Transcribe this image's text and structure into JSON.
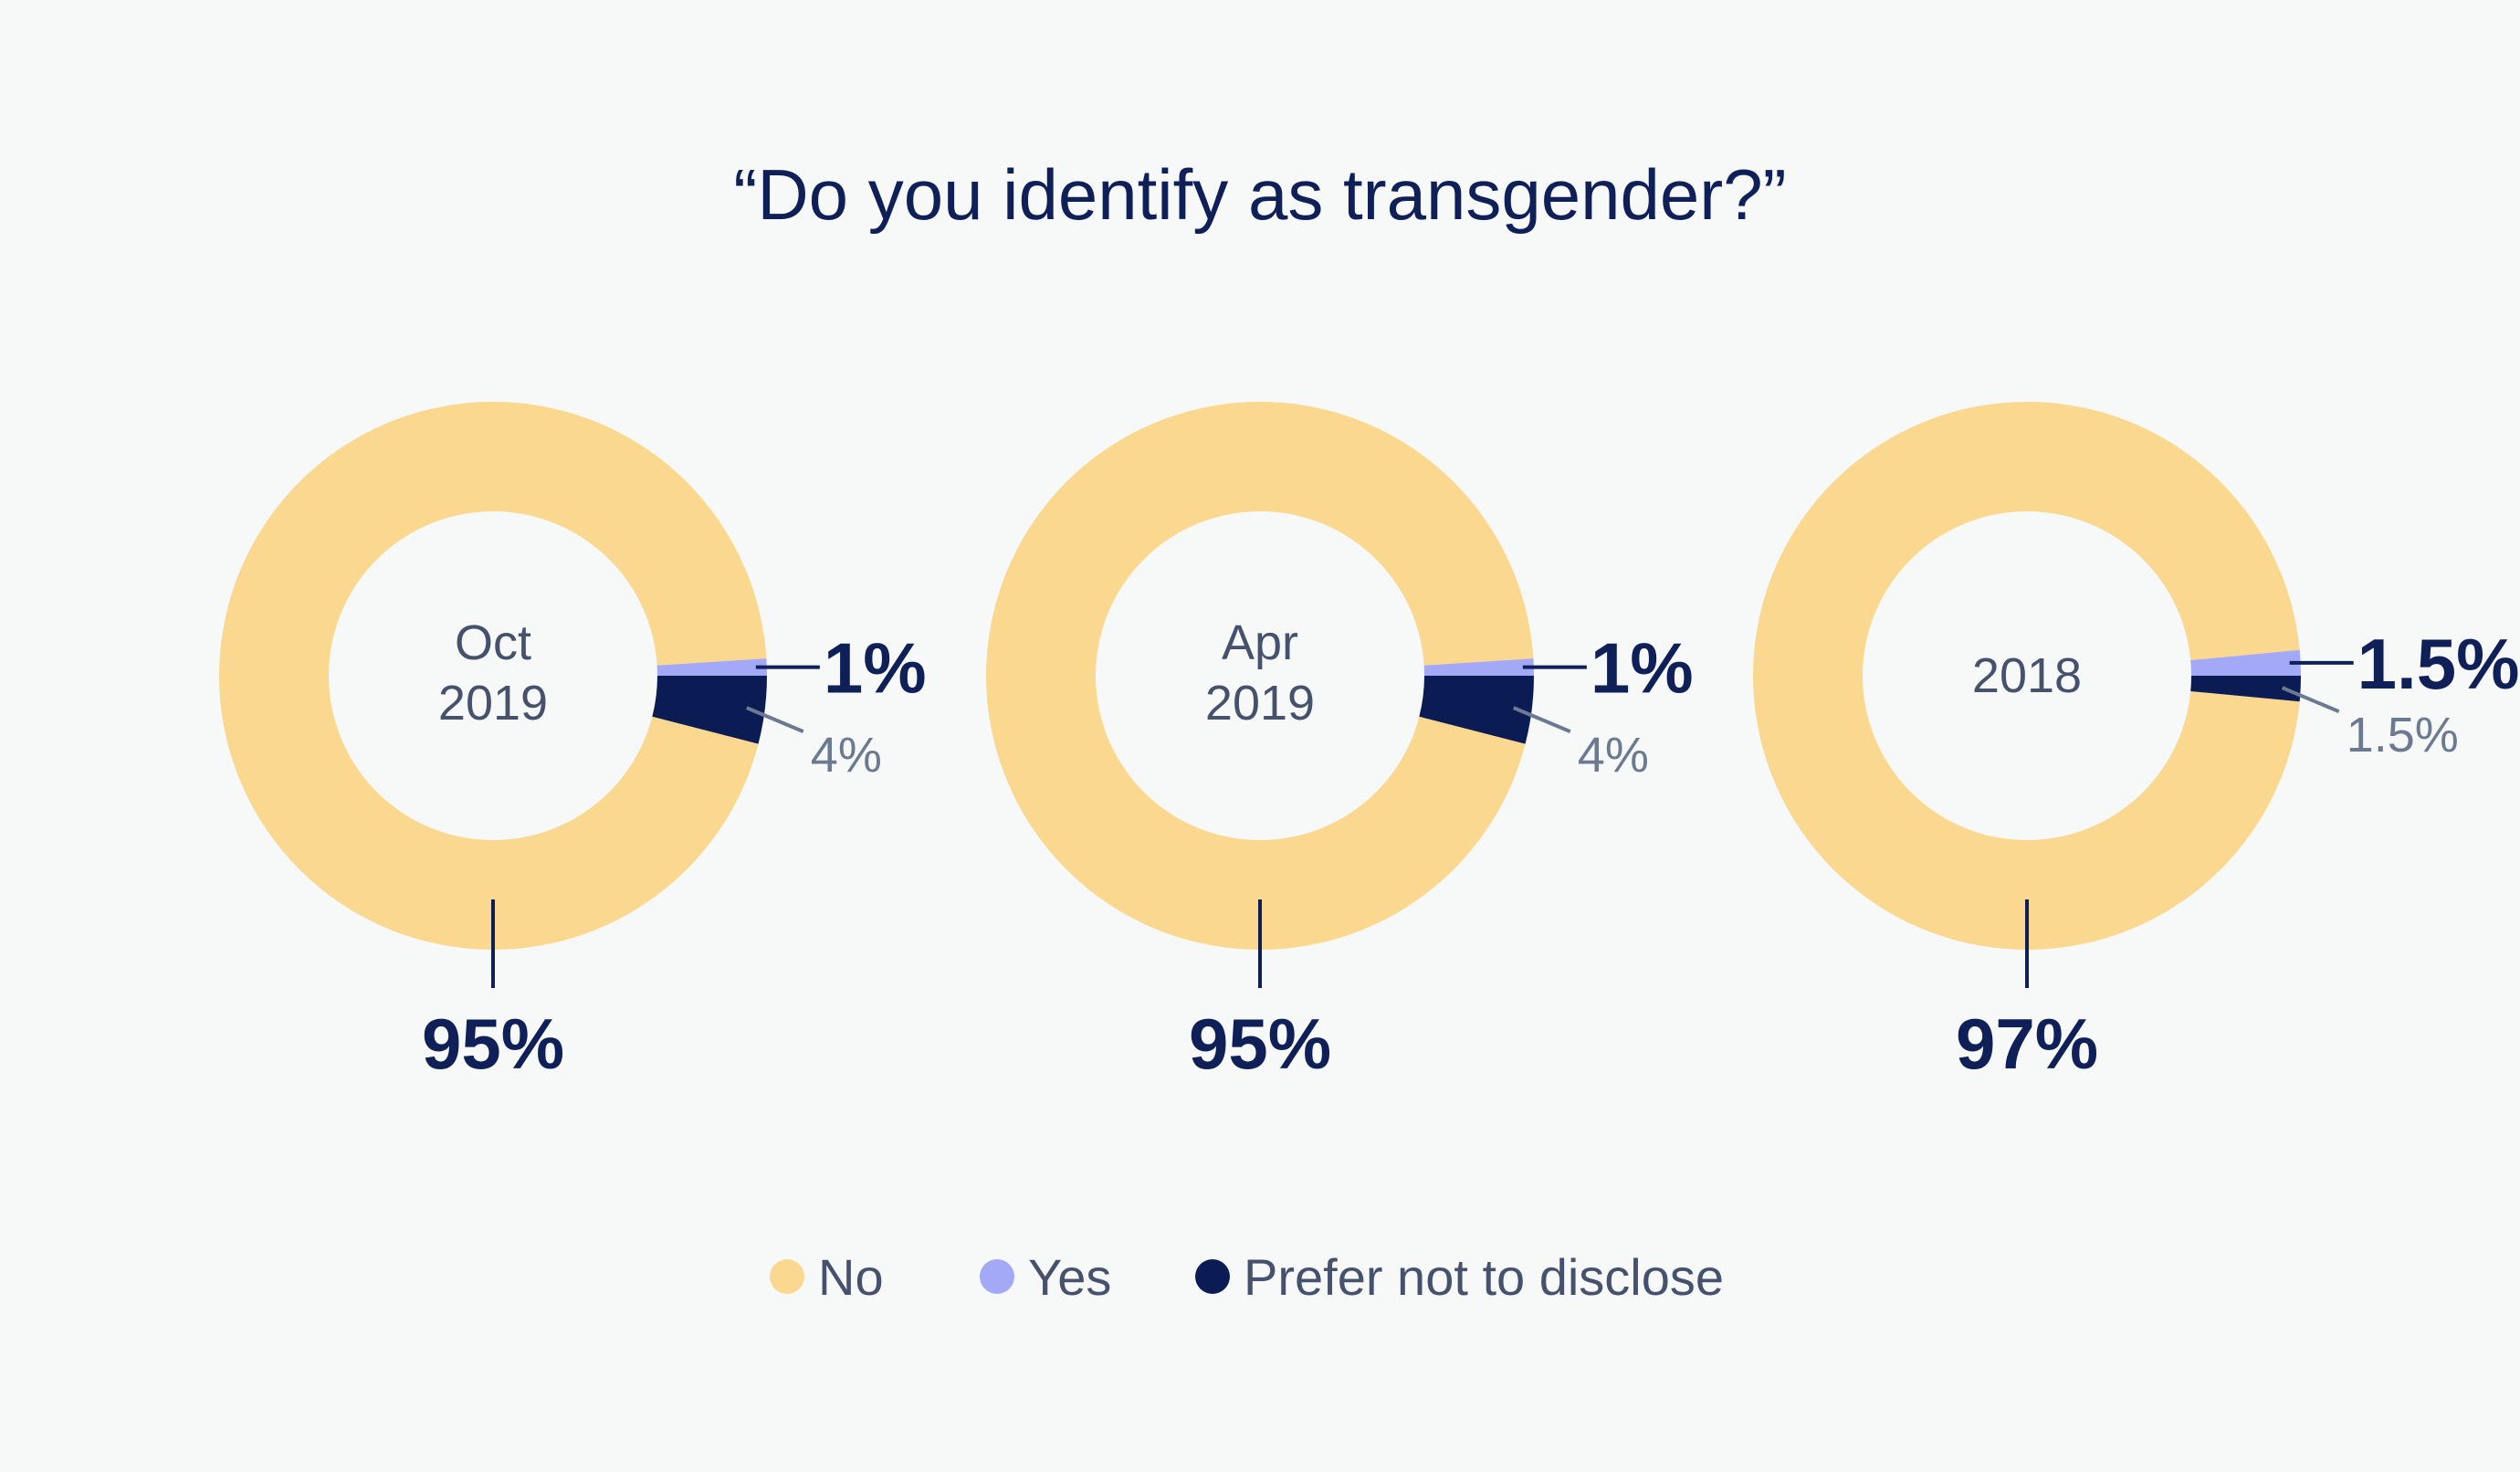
{
  "chart_data": {
    "type": "pie",
    "title": "“Do you identify as transgender?”",
    "colors": {
      "No": "#fbd88f",
      "Yes": "#a3a8f7",
      "Prefer not to disclose": "#0b1c54"
    },
    "legend": {
      "placement": "bottom",
      "entries": [
        "No",
        "Yes",
        "Prefer not to disclose"
      ]
    },
    "charts": [
      {
        "center_label_line1": "Oct",
        "center_label_line2": "2019",
        "slices": [
          {
            "name": "No",
            "value": 95,
            "label": "95%"
          },
          {
            "name": "Yes",
            "value": 1,
            "label": "1%"
          },
          {
            "name": "Prefer not to disclose",
            "value": 4,
            "label": "4%"
          }
        ]
      },
      {
        "center_label_line1": "Apr",
        "center_label_line2": "2019",
        "slices": [
          {
            "name": "No",
            "value": 95,
            "label": "95%"
          },
          {
            "name": "Yes",
            "value": 1,
            "label": "1%"
          },
          {
            "name": "Prefer not to disclose",
            "value": 4,
            "label": "4%"
          }
        ]
      },
      {
        "center_label_line1": "2018",
        "center_label_line2": "",
        "slices": [
          {
            "name": "No",
            "value": 97,
            "label": "97%"
          },
          {
            "name": "Yes",
            "value": 1.5,
            "label": "1.5%"
          },
          {
            "name": "Prefer not to disclose",
            "value": 1.5,
            "label": "1.5%"
          }
        ]
      }
    ]
  }
}
